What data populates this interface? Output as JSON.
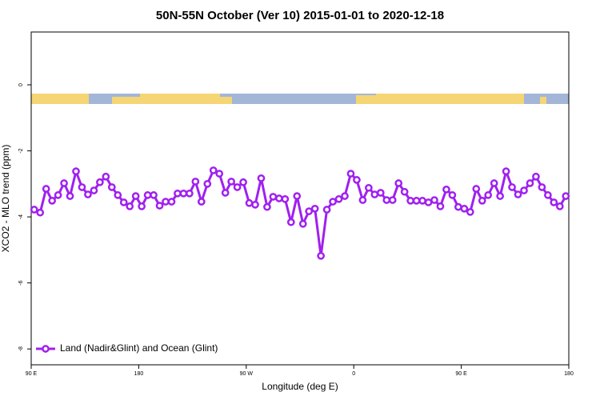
{
  "chart_data": {
    "type": "line",
    "title": "50N-55N October (Ver 10)   2015-01-01 to 2020-12-18",
    "x_label": "Longitude (deg E)",
    "y_label": "XCO2 - MLO trend (ppm)",
    "xlim": [
      90,
      540
    ],
    "ylim": [
      -8.48,
      1.6
    ],
    "xticks": [
      {
        "value": 90,
        "label": "90 E"
      },
      180,
      {
        "value": 270,
        "label": "90 W"
      },
      {
        "value": 360,
        "label": "0"
      },
      {
        "value": 450,
        "label": "90 E"
      },
      {
        "value": 540,
        "label": "180"
      }
    ],
    "yticks": [
      0,
      -2,
      -4,
      -6,
      -8
    ],
    "legend": "bottom-left",
    "x": [
      92.5,
      97.5,
      102.5,
      107.5,
      112.5,
      117.5,
      122.5,
      127.5,
      132.5,
      137.5,
      142.5,
      147.5,
      152.5,
      157.5,
      162.5,
      167.5,
      172.5,
      177.5,
      182.5,
      187.5,
      192.5,
      197.5,
      202.5,
      207.5,
      212.5,
      217.5,
      222.5,
      227.5,
      232.5,
      237.5,
      242.5,
      247.5,
      252.5,
      257.5,
      262.5,
      267.5,
      272.5,
      277.5,
      282.5,
      287.5,
      292.5,
      297.5,
      302.5,
      307.5,
      312.5,
      317.5,
      322.5,
      327.5,
      332.5,
      337.5,
      342.5,
      347.5,
      352.5,
      357.5,
      362.5,
      367.5,
      372.5,
      377.5,
      382.5,
      387.5,
      392.5,
      397.5,
      402.5,
      407.5,
      412.5,
      417.5,
      422.5,
      427.5,
      432.5,
      437.5,
      442.5,
      447.5,
      452.5,
      457.5,
      462.5,
      467.5,
      472.5,
      477.5,
      482.5,
      487.5,
      492.5,
      497.5,
      502.5,
      507.5,
      512.5,
      517.5,
      522.5,
      527.5,
      532.5,
      537.5
    ],
    "series": [
      {
        "name": "Land (Nadir&Glint) and Ocean (Glint)",
        "color": "#a020f0",
        "values": [
          -3.78,
          -3.87,
          -3.15,
          -3.51,
          -3.34,
          -2.98,
          -3.37,
          -2.62,
          -3.1,
          -3.32,
          -3.2,
          -2.95,
          -2.78,
          -3.1,
          -3.34,
          -3.56,
          -3.68,
          -3.37,
          -3.68,
          -3.34,
          -3.34,
          -3.66,
          -3.54,
          -3.54,
          -3.29,
          -3.29,
          -3.29,
          -2.93,
          -3.54,
          -3.0,
          -2.59,
          -2.69,
          -3.27,
          -2.93,
          -3.1,
          -2.95,
          -3.58,
          -3.63,
          -2.83,
          -3.7,
          -3.39,
          -3.44,
          -3.46,
          -4.16,
          -3.37,
          -4.21,
          -3.83,
          -3.75,
          -5.18,
          -3.78,
          -3.54,
          -3.46,
          -3.37,
          -2.69,
          -2.88,
          -3.49,
          -3.12,
          -3.32,
          -3.27,
          -3.49,
          -3.49,
          -2.98,
          -3.24,
          -3.51,
          -3.51,
          -3.51,
          -3.56,
          -3.49,
          -3.68,
          -3.17,
          -3.34,
          -3.7,
          -3.75,
          -3.85,
          -3.15,
          -3.51,
          -3.34,
          -2.98,
          -3.37,
          -2.62,
          -3.1,
          -3.32,
          -3.2,
          -2.98,
          -2.78,
          -3.1,
          -3.34,
          -3.56,
          -3.68,
          -3.37
        ]
      }
    ]
  }
}
